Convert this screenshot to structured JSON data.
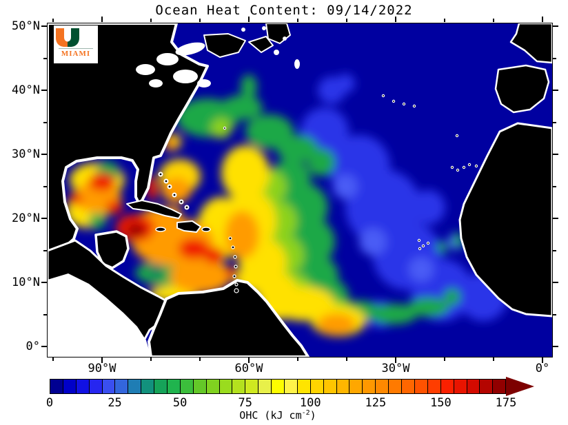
{
  "title": "Ocean Heat Content: 09/14/2022",
  "logo": {
    "org": "MIAMI",
    "u_left_color": "#F47321",
    "u_right_color": "#005030",
    "text_color": "#F47321"
  },
  "map": {
    "y_axis": {
      "labels": [
        "50°N",
        "40°N",
        "30°N",
        "20°N",
        "10°N",
        "0°"
      ]
    },
    "x_axis": {
      "labels": [
        "90°W",
        "60°W",
        "30°W",
        "0°"
      ]
    },
    "colors": {
      "ocean_low_ohc": "#0000A0",
      "land": "#000000",
      "coastline": "#FFFFFF",
      "no_data_pacific": "#FFFFFF"
    }
  },
  "colorbar": {
    "ticks": [
      "0",
      "25",
      "50",
      "75",
      "100",
      "125",
      "150",
      "175"
    ],
    "label_prefix": "OHC (kJ cm",
    "label_sup": "-2",
    "label_suffix": ")",
    "arrow_color": "#7D0000",
    "segment_colors": [
      "#000091",
      "#0000C8",
      "#1111E3",
      "#2626F0",
      "#3A4FF0",
      "#3366DC",
      "#1F7DB4",
      "#12917D",
      "#16A359",
      "#20B44E",
      "#3CBE3C",
      "#64C828",
      "#80D220",
      "#9ADC1E",
      "#B4E11E",
      "#CFE920",
      "#E8F04A",
      "#FDFD00",
      "#FFF34A",
      "#FFE400",
      "#FFD400",
      "#FFC500",
      "#FFB600",
      "#FFA700",
      "#FF9800",
      "#FF8900",
      "#FF7A00",
      "#FF6600",
      "#FF5200",
      "#FF3D00",
      "#FA2000",
      "#E81400",
      "#D40A00",
      "#B40500",
      "#910000"
    ]
  },
  "chart_data": {
    "type": "heatmap",
    "title": "Ocean Heat Content: 09/14/2022",
    "date": "09/14/2022",
    "colorbar_label": "OHC (kJ cm^-2)",
    "units": "kJ cm^-2",
    "scale_min": 0,
    "scale_max": 175,
    "scale_step_per_color": 5,
    "scale_arrow": "values > 175",
    "x_ticks": [
      "90°W",
      "60°W",
      "30°W",
      "0°"
    ],
    "y_ticks": [
      "50°N",
      "40°N",
      "30°N",
      "20°N",
      "10°N",
      "0°"
    ],
    "grid": false,
    "legend_position": "bottom colorbar",
    "regions": [
      {
        "region": "North Atlantic north of 40°N",
        "approx_ohc": "0-20"
      },
      {
        "region": "Eastern subtropical Atlantic / off Europe and NW Africa",
        "approx_ohc": "0-25"
      },
      {
        "region": "Central subtropical Atlantic (30-40°N)",
        "approx_ohc": "25-60"
      },
      {
        "region": "Gulf Stream band off US East Coast",
        "approx_ohc": "50-110"
      },
      {
        "region": "Sargasso Sea / Bahamas",
        "approx_ohc": "90-130"
      },
      {
        "region": "Gulf of Mexico",
        "approx_ohc": "60-140"
      },
      {
        "region": "Gulf of Mexico Loop Current eddy",
        "approx_ohc": "150-170"
      },
      {
        "region": "Northwest Caribbean (south of Cuba)",
        "approx_ohc": "160-175+"
      },
      {
        "region": "Caribbean Sea",
        "approx_ohc": "100-160"
      },
      {
        "region": "Tropical Atlantic 10-20°N west of 40°W",
        "approx_ohc": "75-125"
      },
      {
        "region": "Equatorial warm patch near 45°W, 3°N",
        "approx_ohc": "100-130"
      },
      {
        "region": "Eastern equatorial Atlantic / Gulf of Guinea",
        "approx_ohc": "0-30"
      },
      {
        "region": "Upwelling strip along West Africa ~15°N",
        "approx_ohc": "30-60"
      },
      {
        "region": "Pacific corner (lower left)",
        "approx_ohc": "no data (white)"
      }
    ]
  }
}
